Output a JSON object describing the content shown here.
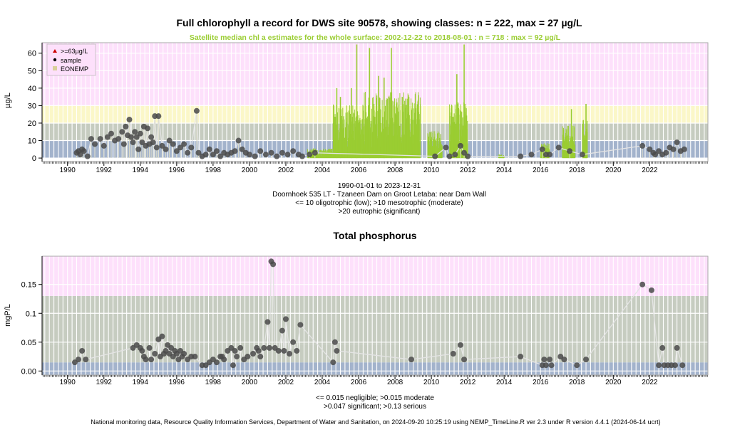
{
  "footer": "National monitoring data, Resource Quality Information Services, Department of Water and Sanitation, on 2024-09-20 10:25:19 using NEMP_TimeLine.R ver 2.3 under R version 4.4.1 (2024-06-14 ucrt)",
  "chart_data": [
    {
      "type": "scatter",
      "title": "Full chlorophyll a record for DWS site 90578, showing classes: n = 222, max = 27 µg/L",
      "subtitle": "Satellite median chl a estimates for the whole surface: 2002-12-22 to 2018-08-01 : n = 718 : max = 92 µg/L",
      "ylabel": "µg/L",
      "xlim": [
        1988.6,
        2025.2
      ],
      "ylim": [
        -2,
        66
      ],
      "x_ticks": [
        1990,
        1992,
        1994,
        1996,
        1998,
        2000,
        2002,
        2004,
        2006,
        2008,
        2010,
        2012,
        2014,
        2016,
        2018,
        2020,
        2022
      ],
      "y_ticks": [
        0,
        10,
        20,
        30,
        40,
        50,
        60
      ],
      "grid": true,
      "legend_position": "top-left",
      "legend": [
        {
          "label": ">=63µg/L",
          "color": "#cc0000",
          "symbol": "triangle"
        },
        {
          "label": "sample",
          "color": "#000000",
          "symbol": "dot"
        },
        {
          "label": "EONEMP",
          "color": "#d9cf9a",
          "symbol": "square"
        }
      ],
      "bands": [
        {
          "from": 0,
          "to": 10,
          "color": "#a3b3cc"
        },
        {
          "from": 10,
          "to": 20,
          "color": "#c6ccc0"
        },
        {
          "from": 20,
          "to": 30,
          "color": "#fbf7c8"
        },
        {
          "from": 30,
          "to": 66,
          "color": "#fde0fb"
        }
      ],
      "xaxis_caption": [
        "1990-01-01 to 2023-12-31",
        "Doornhoek 535 LT - Tzaneen Dam on Groot Letaba: near Dam Wall",
        "<= 10 oligotrophic (low); >10 mesotrophic (moderate)",
        ">20 eutrophic (significant)"
      ],
      "satellite": {
        "color": "#9acd32",
        "x_range": [
          2002.97,
          2018.58
        ],
        "bursts": [
          {
            "from": 2003.2,
            "to": 2004.6,
            "level": 5
          },
          {
            "from": 2004.6,
            "to": 2006.3,
            "level": 28
          },
          {
            "from": 2006.3,
            "to": 2009.4,
            "level": 35
          },
          {
            "from": 2009.8,
            "to": 2010.6,
            "level": 14
          },
          {
            "from": 2011.0,
            "to": 2012.0,
            "level": 30
          },
          {
            "from": 2013.7,
            "to": 2014.0,
            "level": 2
          },
          {
            "from": 2016.0,
            "to": 2016.5,
            "level": 8
          },
          {
            "from": 2017.2,
            "to": 2017.9,
            "level": 17
          },
          {
            "from": 2018.3,
            "to": 2018.58,
            "level": 20
          }
        ],
        "peaks": [
          {
            "x": 2004.8,
            "y": 40
          },
          {
            "x": 2005.0,
            "y": 35
          },
          {
            "x": 2005.6,
            "y": 40
          },
          {
            "x": 2005.9,
            "y": 65
          },
          {
            "x": 2006.6,
            "y": 63
          },
          {
            "x": 2007.1,
            "y": 47
          },
          {
            "x": 2007.4,
            "y": 46
          },
          {
            "x": 2007.8,
            "y": 63
          },
          {
            "x": 2008.4,
            "y": 35
          },
          {
            "x": 2008.6,
            "y": 34
          },
          {
            "x": 2010.0,
            "y": 12
          },
          {
            "x": 2011.4,
            "y": 48
          },
          {
            "x": 2011.8,
            "y": 65
          },
          {
            "x": 2017.7,
            "y": 28
          },
          {
            "x": 2018.5,
            "y": 31
          }
        ]
      },
      "series": [
        {
          "name": "sample",
          "x": [
            1990.5,
            1990.6,
            1990.7,
            1990.8,
            1990.9,
            1991.1,
            1991.3,
            1991.5,
            1991.8,
            1992.0,
            1992.2,
            1992.4,
            1992.6,
            1992.8,
            1993.0,
            1993.1,
            1993.2,
            1993.3,
            1993.4,
            1993.5,
            1993.6,
            1993.7,
            1993.8,
            1993.9,
            1994.0,
            1994.1,
            1994.2,
            1994.3,
            1994.4,
            1994.5,
            1994.6,
            1994.7,
            1994.8,
            1994.9,
            1995.0,
            1995.2,
            1995.4,
            1995.6,
            1995.8,
            1996.0,
            1996.2,
            1996.4,
            1996.6,
            1996.8,
            1997.1,
            1997.2,
            1997.4,
            1997.6,
            1997.8,
            1998.0,
            1998.2,
            1998.4,
            1998.6,
            1998.8,
            1999.0,
            1999.2,
            1999.4,
            1999.6,
            1999.8,
            2000.0,
            2000.3,
            2000.6,
            2000.9,
            2001.2,
            2001.5,
            2001.8,
            2002.1,
            2002.4,
            2002.7,
            2002.9,
            2003.3,
            2003.6,
            2010.2,
            2010.8,
            2011.0,
            2011.3,
            2011.6,
            2011.8,
            2012.0,
            2014.9,
            2015.5,
            2016.1,
            2016.3,
            2016.5,
            2017.0,
            2017.6,
            2018.3,
            2021.6,
            2022.0,
            2022.2,
            2022.3,
            2022.5,
            2022.7,
            2022.9,
            2023.1,
            2023.3,
            2023.5,
            2023.7,
            2023.9
          ],
          "y": [
            3,
            4,
            2,
            5,
            4,
            1,
            11,
            8,
            11,
            7,
            12,
            14,
            10,
            11,
            15,
            8,
            18,
            13,
            22,
            12,
            9,
            15,
            12,
            5,
            14,
            9,
            18,
            7,
            17,
            8,
            12,
            9,
            24,
            6,
            24,
            7,
            5,
            10,
            8,
            4,
            6,
            8,
            3,
            6,
            27,
            3,
            1,
            2,
            5,
            2,
            4,
            1,
            3,
            2,
            3,
            4,
            10,
            5,
            3,
            2,
            1,
            4,
            2,
            3,
            1,
            3,
            2,
            4,
            2,
            1,
            2,
            3,
            1,
            6,
            1,
            2,
            7,
            3,
            1,
            1,
            2,
            5,
            2,
            2,
            6,
            4,
            2,
            7,
            5,
            3,
            2,
            4,
            2,
            3,
            6,
            5,
            9,
            4,
            5
          ]
        }
      ]
    },
    {
      "type": "line",
      "title": "Total phosphorus",
      "ylabel": "mgP/L",
      "xlim": [
        1988.6,
        2025.2
      ],
      "ylim": [
        -0.007,
        0.199
      ],
      "x_ticks": [
        1990,
        1992,
        1994,
        1996,
        1998,
        2000,
        2002,
        2004,
        2006,
        2008,
        2010,
        2012,
        2014,
        2016,
        2018,
        2020,
        2022
      ],
      "y_ticks": [
        0.0,
        0.05,
        0.1,
        0.15
      ],
      "grid": true,
      "bands": [
        {
          "from": -0.007,
          "to": 0.015,
          "color": "#a3b3cc"
        },
        {
          "from": 0.015,
          "to": 0.047,
          "color": "#c6ccc0"
        },
        {
          "from": 0.047,
          "to": 0.13,
          "color": "#c6ccc0"
        },
        {
          "from": 0.13,
          "to": 0.199,
          "color": "#fde0fb"
        }
      ],
      "xaxis_caption": [
        "<= 0.015 negligible; >0.015 moderate",
        ">0.047 significant; >0.13 serious"
      ],
      "series": [
        {
          "name": "sample",
          "x": [
            1990.4,
            1990.6,
            1990.8,
            1991.0,
            1993.6,
            1993.8,
            1994.0,
            1994.1,
            1994.2,
            1994.3,
            1994.5,
            1994.6,
            1994.8,
            1995.0,
            1995.1,
            1995.2,
            1995.3,
            1995.4,
            1995.5,
            1995.6,
            1995.7,
            1995.8,
            1995.9,
            1996.0,
            1996.1,
            1996.2,
            1996.3,
            1996.4,
            1996.6,
            1996.8,
            1997.0,
            1997.4,
            1997.6,
            1997.8,
            1998.0,
            1998.2,
            1998.4,
            1998.5,
            1998.6,
            1998.8,
            1999.0,
            1999.1,
            1999.2,
            1999.3,
            1999.5,
            1999.7,
            1999.9,
            2000.2,
            2000.4,
            2000.5,
            2000.6,
            2000.8,
            2001.0,
            2001.1,
            2001.2,
            2001.3,
            2001.4,
            2001.6,
            2001.8,
            2001.9,
            2002.0,
            2002.2,
            2002.4,
            2002.6,
            2002.8,
            2004.6,
            2004.7,
            2004.8,
            2008.9,
            2011.2,
            2011.6,
            2011.8,
            2014.9,
            2016.1,
            2016.2,
            2016.3,
            2016.5,
            2016.6,
            2017.1,
            2017.3,
            2018.0,
            2018.5,
            2021.6,
            2022.1,
            2022.5,
            2022.7,
            2022.8,
            2023.0,
            2023.2,
            2023.4,
            2023.5,
            2023.8
          ],
          "y": [
            0.015,
            0.02,
            0.035,
            0.02,
            0.04,
            0.045,
            0.04,
            0.035,
            0.025,
            0.02,
            0.04,
            0.02,
            0.03,
            0.055,
            0.025,
            0.06,
            0.03,
            0.035,
            0.045,
            0.03,
            0.04,
            0.025,
            0.035,
            0.03,
            0.02,
            0.035,
            0.025,
            0.03,
            0.02,
            0.025,
            0.025,
            0.01,
            0.01,
            0.015,
            0.02,
            0.015,
            0.025,
            0.025,
            0.02,
            0.035,
            0.04,
            0.01,
            0.035,
            0.025,
            0.04,
            0.02,
            0.025,
            0.03,
            0.04,
            0.035,
            0.025,
            0.04,
            0.085,
            0.04,
            0.19,
            0.185,
            0.04,
            0.035,
            0.07,
            0.035,
            0.09,
            0.03,
            0.05,
            0.035,
            0.08,
            0.015,
            0.05,
            0.035,
            0.02,
            0.03,
            0.045,
            0.02,
            0.025,
            0.01,
            0.02,
            0.01,
            0.02,
            0.01,
            0.025,
            0.02,
            0.01,
            0.02,
            0.15,
            0.14,
            0.01,
            0.04,
            0.01,
            0.01,
            0.01,
            0.01,
            0.04,
            0.01
          ]
        }
      ]
    }
  ]
}
